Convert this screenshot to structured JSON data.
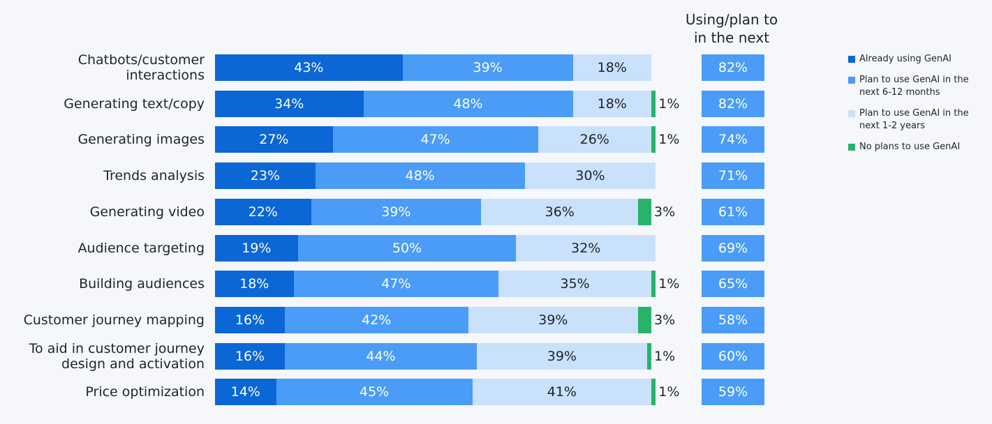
{
  "chart_data": {
    "type": "bar",
    "orientation": "horizontal",
    "stacked": true,
    "categories": [
      "Chatbots/customer interactions",
      "Generating text/copy",
      "Generating images",
      "Trends analysis",
      "Generating video",
      "Audience targeting",
      "Building audiences",
      "Customer journey mapping",
      "To aid in customer journey design and activation",
      "Price optimization"
    ],
    "xlim": [
      0,
      100
    ],
    "series": [
      {
        "name": "Already using GenAI",
        "color": "#0b66d6",
        "label_color": "#ffffff",
        "values": [
          43,
          34,
          27,
          23,
          22,
          19,
          18,
          16,
          16,
          14
        ],
        "value_labels": [
          "43%",
          "34%",
          "27%",
          "23%",
          "22%",
          "19%",
          "18%",
          "16%",
          "16%",
          "14%"
        ]
      },
      {
        "name": "Plan to use GenAI in the next 6-12 months",
        "color": "#4a9cf6",
        "label_color": "#ffffff",
        "values": [
          39,
          48,
          47,
          48,
          39,
          50,
          47,
          42,
          44,
          45
        ],
        "value_labels": [
          "39%",
          "48%",
          "47%",
          "48%",
          "39%",
          "50%",
          "47%",
          "42%",
          "44%",
          "45%"
        ]
      },
      {
        "name": "Plan to use GenAI in the next 1-2 years",
        "color": "#c9e1fb",
        "label_color": "#1f2328",
        "values": [
          18,
          18,
          26,
          30,
          36,
          32,
          35,
          39,
          39,
          41
        ],
        "value_labels": [
          "18%",
          "18%",
          "26%",
          "30%",
          "36%",
          "32%",
          "35%",
          "39%",
          "39%",
          "41%"
        ]
      },
      {
        "name": "No plans to use GenAI",
        "color": "#27b36a",
        "label_color": "#1f2328",
        "label_outside": true,
        "values": [
          null,
          1,
          1,
          null,
          3,
          null,
          1,
          3,
          1,
          1
        ],
        "value_labels": [
          null,
          "1%",
          "1%",
          null,
          "3%",
          null,
          "1%",
          "3%",
          "1%",
          "1%"
        ]
      }
    ],
    "side": {
      "title_lines": [
        "Using/plan to",
        "in the next"
      ],
      "color": "#4a9cf6",
      "values": [
        82,
        82,
        74,
        71,
        61,
        69,
        65,
        58,
        60,
        59
      ],
      "value_labels": [
        "82%",
        "82%",
        "74%",
        "71%",
        "61%",
        "69%",
        "65%",
        "58%",
        "60%",
        "59%"
      ]
    },
    "legend": "right"
  }
}
